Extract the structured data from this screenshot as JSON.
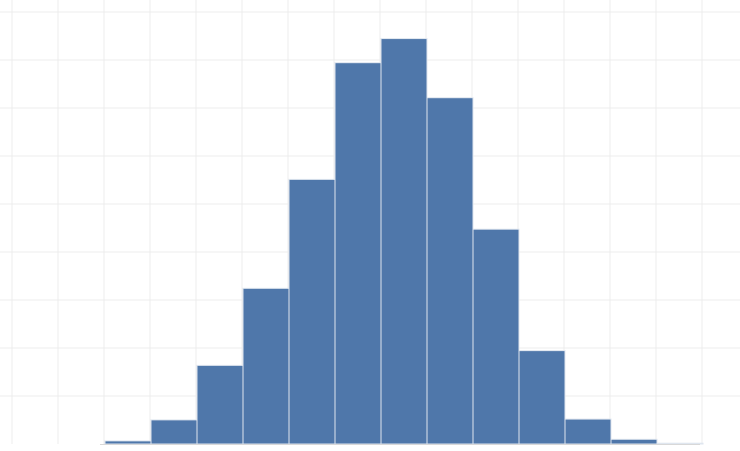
{
  "chart_data": {
    "type": "bar",
    "values": [
      0.8,
      6.2,
      20.2,
      40.0,
      68.0,
      98.0,
      104.2,
      89.0,
      55.2,
      24.0,
      6.4,
      1.2,
      0.2
    ],
    "title": "",
    "xlabel": "",
    "ylabel": "",
    "ylim": [
      0,
      110
    ],
    "grid": true,
    "legend": "none",
    "bar_color": "#4f77aa",
    "bar_edge_color": "#dfe6ef",
    "grid_color": "#ececec",
    "baseline_color": "#d8d8d8"
  }
}
